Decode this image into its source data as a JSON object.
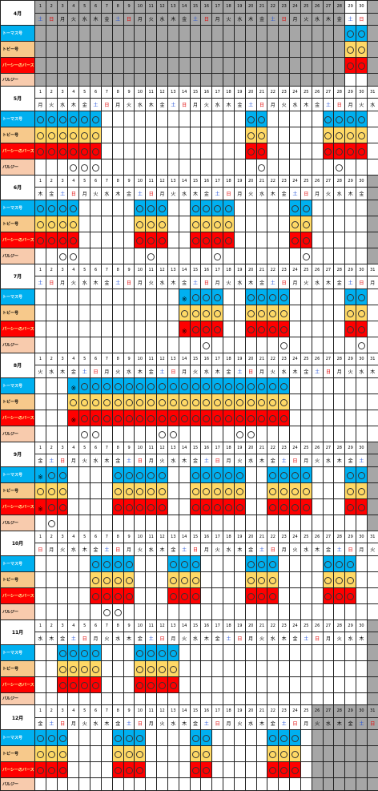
{
  "labels": {
    "thomas": "トーマス号",
    "toby": "トビー号",
    "percy": "パーシーのバースデー",
    "bulgy": "バルジー"
  },
  "months": [
    {
      "name": "4月",
      "days": 30,
      "dow": [
        "土",
        "日",
        "月",
        "火",
        "水",
        "木",
        "金",
        "土",
        "日",
        "月",
        "火",
        "水",
        "木",
        "金",
        "土",
        "日",
        "月",
        "火",
        "水",
        "木",
        "金",
        "土",
        "日",
        "月",
        "火",
        "水",
        "木",
        "金",
        "土",
        "日"
      ],
      "blocked": [
        1,
        2,
        3,
        4,
        5,
        6,
        7,
        8,
        9,
        10,
        11,
        12,
        13,
        14,
        15,
        16,
        17,
        18,
        19,
        20,
        21,
        22,
        23,
        24,
        25,
        26,
        27,
        28
      ],
      "thomas": [
        29,
        30
      ],
      "toby": [
        29,
        30
      ],
      "percy": [
        29,
        30
      ],
      "bulgy": [],
      "special": {}
    },
    {
      "name": "5月",
      "days": 31,
      "dow": [
        "月",
        "火",
        "水",
        "木",
        "金",
        "土",
        "日",
        "月",
        "火",
        "水",
        "木",
        "金",
        "土",
        "日",
        "月",
        "火",
        "水",
        "木",
        "金",
        "土",
        "日",
        "月",
        "火",
        "水",
        "木",
        "金",
        "土",
        "日",
        "月",
        "火",
        "水"
      ],
      "blocked": [],
      "thomas": [
        1,
        2,
        3,
        4,
        5,
        6,
        20,
        21,
        27,
        28,
        29,
        30
      ],
      "toby": [
        1,
        2,
        3,
        4,
        5,
        6,
        20,
        21,
        27,
        28,
        29,
        30
      ],
      "percy": [
        1,
        2,
        3,
        4,
        5,
        6,
        20,
        21,
        27,
        28,
        29,
        30
      ],
      "bulgy": [
        4,
        5,
        6,
        21,
        28
      ],
      "special": {}
    },
    {
      "name": "6月",
      "days": 30,
      "dow": [
        "木",
        "金",
        "土",
        "日",
        "月",
        "火",
        "水",
        "木",
        "金",
        "土",
        "日",
        "月",
        "火",
        "水",
        "木",
        "金",
        "土",
        "日",
        "月",
        "火",
        "水",
        "木",
        "金",
        "土",
        "日",
        "月",
        "火",
        "水",
        "木",
        "金"
      ],
      "blocked": [],
      "thomas": [
        1,
        2,
        3,
        4,
        10,
        11,
        12,
        15,
        16,
        17,
        18,
        24,
        25
      ],
      "toby": [
        1,
        2,
        3,
        4,
        10,
        11,
        12,
        15,
        16,
        17,
        18,
        24,
        25
      ],
      "percy": [
        1,
        2,
        3,
        4,
        10,
        11,
        12,
        15,
        16,
        17,
        18,
        24,
        25
      ],
      "bulgy": [
        3,
        4,
        11,
        17,
        25
      ],
      "special": {}
    },
    {
      "name": "7月",
      "days": 31,
      "dow": [
        "土",
        "日",
        "月",
        "火",
        "水",
        "木",
        "金",
        "土",
        "日",
        "月",
        "火",
        "水",
        "木",
        "金",
        "土",
        "日",
        "月",
        "火",
        "水",
        "木",
        "金",
        "土",
        "日",
        "月",
        "火",
        "水",
        "木",
        "金",
        "土",
        "日",
        "月"
      ],
      "blocked": [],
      "thomas": [
        14,
        15,
        16,
        17,
        20,
        21,
        22,
        23,
        29,
        30
      ],
      "toby": [
        14,
        15,
        16,
        17,
        20,
        21,
        22,
        23,
        29,
        30
      ],
      "percy": [
        14,
        15,
        16,
        17,
        20,
        21,
        22,
        23,
        29,
        30
      ],
      "bulgy": [
        16,
        23,
        30
      ],
      "special": {
        "thomas": {
          "14": "※"
        },
        "percy": {
          "14": "※"
        }
      }
    },
    {
      "name": "8月",
      "days": 31,
      "dow": [
        "火",
        "水",
        "木",
        "金",
        "土",
        "日",
        "月",
        "火",
        "水",
        "木",
        "金",
        "土",
        "日",
        "月",
        "火",
        "水",
        "木",
        "金",
        "土",
        "日",
        "月",
        "火",
        "水",
        "木",
        "金",
        "土",
        "日",
        "月",
        "火",
        "水",
        "木"
      ],
      "blocked": [],
      "thomas": [
        4,
        5,
        6,
        7,
        8,
        9,
        10,
        11,
        12,
        13,
        14,
        15,
        16,
        17,
        18,
        19,
        20,
        21,
        22,
        23
      ],
      "toby": [
        4,
        5,
        6,
        7,
        8,
        9,
        10,
        11,
        12,
        13,
        14,
        15,
        16,
        17,
        18,
        19,
        20,
        21,
        22,
        23
      ],
      "percy": [
        4,
        5,
        6,
        7,
        8,
        9,
        10,
        11,
        12,
        13,
        14,
        15,
        16,
        17,
        18,
        19,
        20,
        21,
        22,
        23
      ],
      "bulgy": [
        5,
        6,
        12,
        13,
        19,
        20
      ],
      "special": {
        "thomas": {
          "4": "※"
        },
        "percy": {
          "4": "※"
        }
      }
    },
    {
      "name": "9月",
      "days": 30,
      "dow": [
        "金",
        "土",
        "日",
        "月",
        "火",
        "水",
        "木",
        "金",
        "土",
        "日",
        "月",
        "火",
        "水",
        "木",
        "金",
        "土",
        "日",
        "月",
        "火",
        "水",
        "木",
        "金",
        "土",
        "日",
        "月",
        "火",
        "水",
        "木",
        "金",
        "土"
      ],
      "blocked": [],
      "thomas": [
        1,
        2,
        3,
        8,
        9,
        10,
        11,
        12,
        15,
        16,
        17,
        18,
        19,
        22,
        23,
        24,
        25,
        29,
        30
      ],
      "toby": [
        1,
        2,
        3,
        8,
        9,
        10,
        11,
        12,
        15,
        16,
        17,
        18,
        19,
        22,
        23,
        24,
        25,
        29,
        30
      ],
      "percy": [
        1,
        2,
        3,
        8,
        9,
        10,
        11,
        12,
        15,
        16,
        17,
        18,
        19,
        22,
        23,
        24,
        25,
        29,
        30
      ],
      "bulgy": [
        2
      ],
      "special": {
        "thomas": {
          "1": "※"
        },
        "percy": {
          "1": "※"
        }
      }
    },
    {
      "name": "10月",
      "days": 31,
      "dow": [
        "日",
        "月",
        "火",
        "水",
        "木",
        "金",
        "土",
        "日",
        "月",
        "火",
        "水",
        "木",
        "金",
        "土",
        "日",
        "月",
        "火",
        "水",
        "木",
        "金",
        "土",
        "日",
        "月",
        "火",
        "水",
        "木",
        "金",
        "土",
        "日",
        "月",
        "火"
      ],
      "blocked": [],
      "thomas": [
        6,
        7,
        8,
        9,
        13,
        14,
        15,
        20,
        21,
        22,
        27,
        28,
        29
      ],
      "toby": [
        6,
        7,
        8,
        9,
        13,
        14,
        15,
        20,
        21,
        22,
        27,
        28,
        29
      ],
      "percy": [
        6,
        7,
        8,
        9,
        13,
        14,
        15,
        20,
        21,
        22,
        27,
        28,
        29
      ],
      "bulgy": [
        7,
        8
      ],
      "special": {}
    },
    {
      "name": "11月",
      "days": 30,
      "dow": [
        "水",
        "木",
        "金",
        "土",
        "日",
        "月",
        "火",
        "水",
        "木",
        "金",
        "土",
        "日",
        "月",
        "火",
        "水",
        "木",
        "金",
        "土",
        "日",
        "月",
        "火",
        "水",
        "木",
        "金",
        "土",
        "日",
        "月",
        "火",
        "水",
        "木"
      ],
      "blocked": [],
      "thomas": [
        3,
        4,
        5,
        6,
        10,
        11,
        12,
        13
      ],
      "toby": [
        3,
        4,
        5,
        6,
        10,
        11,
        12,
        13
      ],
      "percy": [
        3,
        4,
        5,
        6,
        10,
        11,
        12,
        13
      ],
      "bulgy": [],
      "special": {}
    },
    {
      "name": "12月",
      "days": 31,
      "dow": [
        "金",
        "土",
        "日",
        "月",
        "火",
        "水",
        "木",
        "金",
        "土",
        "日",
        "月",
        "火",
        "水",
        "木",
        "金",
        "土",
        "日",
        "月",
        "火",
        "水",
        "木",
        "金",
        "土",
        "日",
        "月",
        "火",
        "水",
        "木",
        "金",
        "土",
        "日"
      ],
      "blocked": [
        26,
        27,
        28,
        29,
        30,
        31
      ],
      "thomas": [
        1,
        2,
        3,
        8,
        9,
        10,
        15,
        16,
        22,
        23,
        24
      ],
      "toby": [
        1,
        2,
        3,
        8,
        9,
        10,
        15,
        16,
        22,
        23,
        24
      ],
      "percy": [
        1,
        2,
        3,
        8,
        9,
        10,
        15,
        16,
        22,
        23,
        24
      ],
      "bulgy": [],
      "special": {}
    }
  ]
}
